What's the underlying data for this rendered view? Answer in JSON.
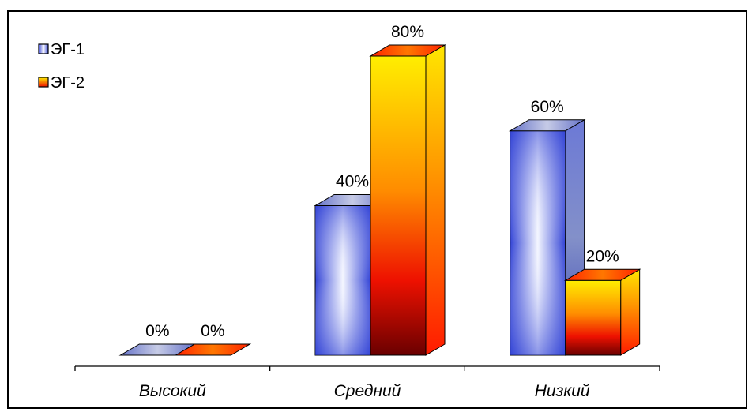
{
  "chart_data": {
    "type": "bar",
    "categories": [
      "Высокий",
      "Средний",
      "Низкий"
    ],
    "series": [
      {
        "name": "ЭГ-1",
        "values": [
          0,
          40,
          60
        ],
        "labels": [
          "0%",
          "40%",
          "60%"
        ]
      },
      {
        "name": "ЭГ-2",
        "values": [
          0,
          80,
          20
        ],
        "labels": [
          "0%",
          "80%",
          "20%"
        ]
      }
    ],
    "ylim": [
      0,
      80
    ],
    "unit": "%",
    "grid": false,
    "legend": "top-left",
    "style": "3d-column",
    "colors": {
      "series1": [
        "#3a4ad8",
        "#ffffff",
        "#8f9cf5"
      ],
      "series2": [
        "#ff1a00",
        "#ffcc00",
        "#ffee00"
      ],
      "outline": "#000000"
    }
  }
}
